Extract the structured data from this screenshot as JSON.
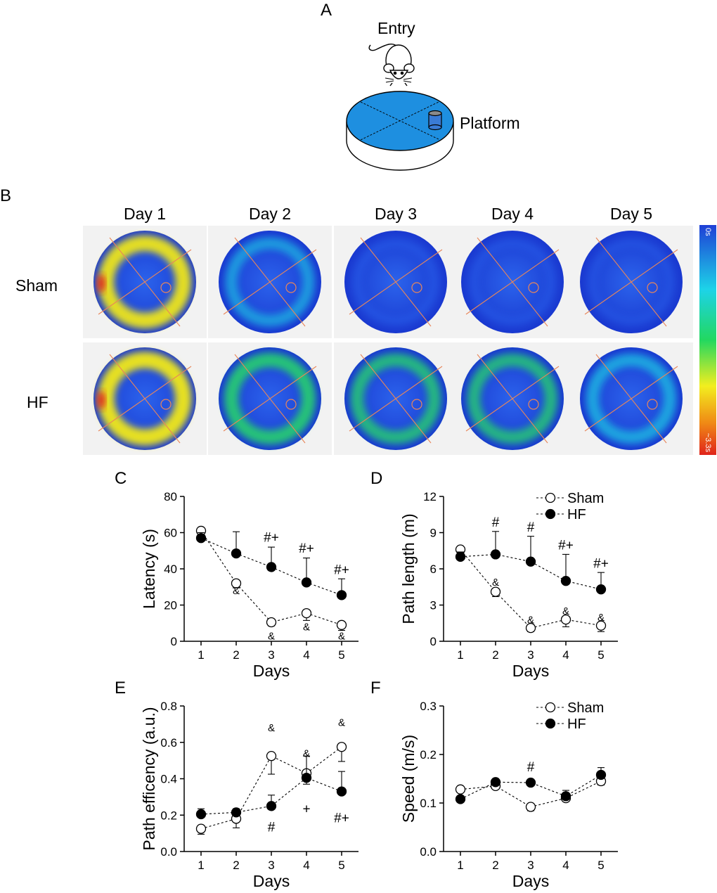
{
  "panel_a": {
    "letter": "A",
    "entry_label": "Entry",
    "platform_label": "Platform"
  },
  "panel_b": {
    "letter": "B",
    "days": [
      "Day 1",
      "Day 2",
      "Day 3",
      "Day 4",
      "Day 5"
    ],
    "groups": [
      "Sham",
      "HF"
    ],
    "colorbar": {
      "min_label": "0s",
      "max_label": "~3.3s"
    },
    "colors": {
      "low": "#1f3fd6",
      "mid": "#19d88a",
      "high": "#e0241b"
    },
    "ring_intensity": {
      "Sham": [
        0.75,
        0.35,
        0.08,
        0.06,
        0.03
      ],
      "HF": [
        0.82,
        0.6,
        0.5,
        0.48,
        0.45
      ]
    }
  },
  "chart_data": [
    {
      "panel": "C",
      "type": "line",
      "xlabel": "Days",
      "ylabel": "Latency (s)",
      "x": [
        1,
        2,
        3,
        4,
        5
      ],
      "xticks": [
        "1",
        "2",
        "3",
        "4",
        "5"
      ],
      "ylim": [
        0,
        80
      ],
      "yticks": [
        "0",
        "20",
        "40",
        "60",
        "80"
      ],
      "series": [
        {
          "name": "Sham",
          "marker": "open",
          "values": [
            61,
            32,
            10.5,
            15.5,
            9
          ],
          "errors": [
            2.5,
            2.5,
            2,
            4,
            3
          ]
        },
        {
          "name": "HF",
          "marker": "filled",
          "values": [
            57,
            48.5,
            41,
            32.5,
            25.5
          ],
          "errors": [
            3,
            12,
            11,
            13.5,
            9
          ]
        }
      ],
      "annotations": [
        {
          "x": 2,
          "y": 26,
          "text": "&"
        },
        {
          "x": 3,
          "y": 1,
          "text": "&"
        },
        {
          "x": 4,
          "y": 6,
          "text": "&"
        },
        {
          "x": 5,
          "y": 1,
          "text": "&"
        },
        {
          "x": 3,
          "y": 55,
          "text": "#+"
        },
        {
          "x": 4,
          "y": 49,
          "text": "#+"
        },
        {
          "x": 5,
          "y": 37,
          "text": "#+"
        }
      ]
    },
    {
      "panel": "D",
      "type": "line",
      "xlabel": "Days",
      "ylabel": "Path length (m)",
      "x": [
        1,
        2,
        3,
        4,
        5
      ],
      "xticks": [
        "1",
        "2",
        "3",
        "4",
        "5"
      ],
      "ylim": [
        0,
        12
      ],
      "yticks": [
        "0",
        "3",
        "6",
        "9",
        "12"
      ],
      "legend": {
        "position": "top-right",
        "labels": [
          "Sham",
          "HF"
        ]
      },
      "series": [
        {
          "name": "Sham",
          "marker": "open",
          "values": [
            7.6,
            4.1,
            1.1,
            1.8,
            1.3
          ],
          "errors": [
            0.3,
            0.4,
            0.3,
            0.6,
            0.5
          ]
        },
        {
          "name": "HF",
          "marker": "filled",
          "values": [
            7.0,
            7.2,
            6.6,
            5.0,
            4.3
          ],
          "errors": [
            0.4,
            1.9,
            2.1,
            2.2,
            1.4
          ]
        }
      ],
      "annotations": [
        {
          "x": 2,
          "y": 4.6,
          "text": "&"
        },
        {
          "x": 3,
          "y": 1.5,
          "text": "&"
        },
        {
          "x": 4,
          "y": 2.2,
          "text": "&"
        },
        {
          "x": 5,
          "y": 1.7,
          "text": "&"
        },
        {
          "x": 2,
          "y": 9.5,
          "text": "#"
        },
        {
          "x": 3,
          "y": 9.1,
          "text": "#"
        },
        {
          "x": 4,
          "y": 7.6,
          "text": "#+"
        },
        {
          "x": 5,
          "y": 6.1,
          "text": "#+"
        }
      ]
    },
    {
      "panel": "E",
      "type": "line",
      "xlabel": "Days",
      "ylabel": "Path efficency (a.u.)",
      "x": [
        1,
        2,
        3,
        4,
        5
      ],
      "xticks": [
        "1",
        "2",
        "3",
        "4",
        "5"
      ],
      "ylim": [
        0,
        0.8
      ],
      "yticks": [
        "0.0",
        "0.2",
        "0.4",
        "0.6",
        "0.8"
      ],
      "series": [
        {
          "name": "Sham",
          "marker": "open",
          "values": [
            0.125,
            0.18,
            0.525,
            0.43,
            0.575
          ],
          "errors": [
            0.03,
            0.05,
            0.1,
            0.06,
            0.08
          ]
        },
        {
          "name": "HF",
          "marker": "filled",
          "values": [
            0.205,
            0.215,
            0.25,
            0.405,
            0.33
          ],
          "errors": [
            0.03,
            0.02,
            0.06,
            0.12,
            0.11
          ]
        }
      ],
      "annotations": [
        {
          "x": 3,
          "y": 0.66,
          "text": "&"
        },
        {
          "x": 4,
          "y": 0.52,
          "text": "&"
        },
        {
          "x": 5,
          "y": 0.69,
          "text": "&"
        },
        {
          "x": 3,
          "y": 0.11,
          "text": "#"
        },
        {
          "x": 4,
          "y": 0.21,
          "text": "+"
        },
        {
          "x": 5,
          "y": 0.16,
          "text": "#+"
        }
      ]
    },
    {
      "panel": "F",
      "type": "line",
      "xlabel": "Days",
      "ylabel": "Speed (m/s)",
      "x": [
        1,
        2,
        3,
        4,
        5
      ],
      "xticks": [
        "1",
        "2",
        "3",
        "4",
        "5"
      ],
      "ylim": [
        0,
        0.3
      ],
      "yticks": [
        "0.0",
        "0.1",
        "0.2",
        "0.3"
      ],
      "legend": {
        "position": "top-right",
        "labels": [
          "Sham",
          "HF"
        ]
      },
      "series": [
        {
          "name": "Sham",
          "marker": "open",
          "values": [
            0.128,
            0.135,
            0.092,
            0.11,
            0.145
          ],
          "errors": [
            0.004,
            0.006,
            0.008,
            0.007,
            0.008
          ]
        },
        {
          "name": "HF",
          "marker": "filled",
          "values": [
            0.108,
            0.143,
            0.142,
            0.114,
            0.158
          ],
          "errors": [
            0.003,
            0.007,
            0.004,
            0.012,
            0.015
          ]
        }
      ],
      "annotations": [
        {
          "x": 3,
          "y": 0.165,
          "text": "#"
        }
      ]
    }
  ]
}
